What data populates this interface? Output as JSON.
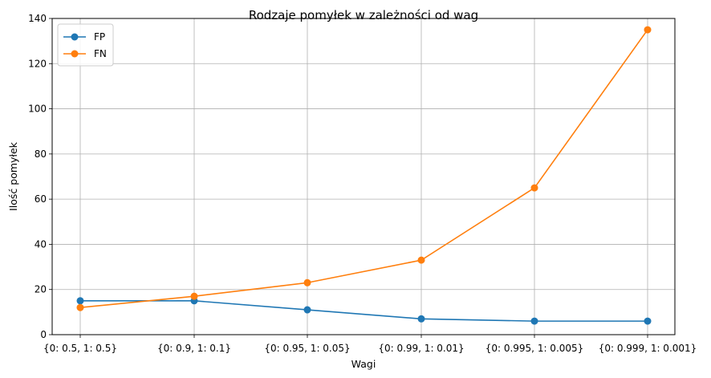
{
  "chart_data": {
    "type": "line",
    "title": "Rodzaje pomyłek w zależności od wag",
    "xlabel": "Wagi",
    "ylabel": "Ilość pomyłek",
    "categories": [
      "{0: 0.5, 1: 0.5}",
      "{0: 0.9, 1: 0.1}",
      "{0: 0.95, 1: 0.05}",
      "{0: 0.99, 1: 0.01}",
      "{0: 0.995, 1: 0.005}",
      "{0: 0.999, 1: 0.001}"
    ],
    "series": [
      {
        "name": "FP",
        "color": "#1f77b4",
        "values": [
          15,
          15,
          11,
          7,
          6,
          6
        ]
      },
      {
        "name": "FN",
        "color": "#ff7f0e",
        "values": [
          12,
          17,
          23,
          33,
          65,
          135
        ]
      }
    ],
    "ylim": [
      0,
      140
    ],
    "yticks": [
      "0",
      "20",
      "40",
      "60",
      "80",
      "100",
      "120",
      "140"
    ],
    "grid": true,
    "legend_position": "top-left",
    "marker": "circle"
  }
}
